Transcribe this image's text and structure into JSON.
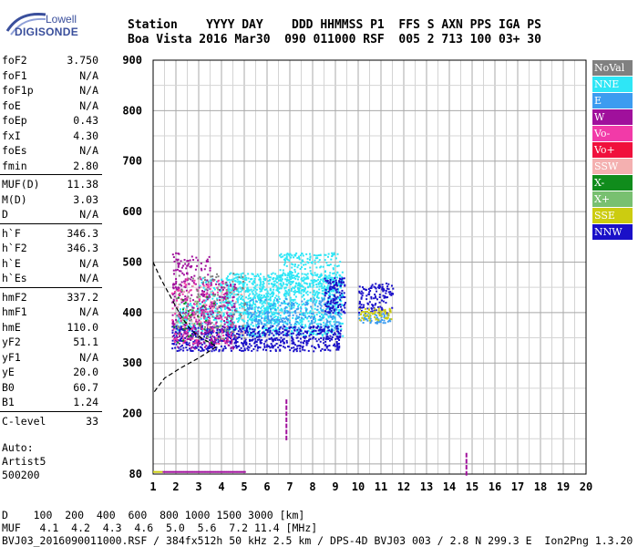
{
  "logo": {
    "brand": "Lowell",
    "product": "DIGISONDE"
  },
  "header": {
    "line1": "Station    YYYY DAY    DDD HHMMSS P1  FFS S AXN PPS IGA PS",
    "line2": "Boa Vista 2016 Mar30  090 011000 RSF  005 2 713 100 03+ 30"
  },
  "params": [
    {
      "name": "foF2",
      "value": "3.750"
    },
    {
      "name": "foF1",
      "value": "N/A"
    },
    {
      "name": "foF1p",
      "value": "N/A"
    },
    {
      "name": "foE",
      "value": "N/A"
    },
    {
      "name": "foEp",
      "value": "0.43"
    },
    {
      "name": "fxI",
      "value": "4.30"
    },
    {
      "name": "foEs",
      "value": "N/A"
    },
    {
      "name": "fmin",
      "value": "2.80"
    },
    {
      "sep": true
    },
    {
      "name": "MUF(D)",
      "value": "11.38"
    },
    {
      "name": "M(D)",
      "value": "3.03"
    },
    {
      "name": "D",
      "value": "N/A"
    },
    {
      "sep": true
    },
    {
      "name": "h`F",
      "value": "346.3"
    },
    {
      "name": "h`F2",
      "value": "346.3"
    },
    {
      "name": "h`E",
      "value": "N/A"
    },
    {
      "name": "h`Es",
      "value": "N/A"
    },
    {
      "sep": true
    },
    {
      "name": "hmF2",
      "value": "337.2"
    },
    {
      "name": "hmF1",
      "value": "N/A"
    },
    {
      "name": "hmE",
      "value": "110.0"
    },
    {
      "name": "yF2",
      "value": "51.1"
    },
    {
      "name": "yF1",
      "value": "N/A"
    },
    {
      "name": "yE",
      "value": "20.0"
    },
    {
      "name": "B0",
      "value": "60.7"
    },
    {
      "name": "B1",
      "value": "1.24"
    },
    {
      "sep": true
    },
    {
      "name": "C-level",
      "value": "33"
    }
  ],
  "auto": {
    "line1": "Auto:",
    "line2": "Artist5",
    "line3": "500200"
  },
  "legend": [
    {
      "label": "NoVal",
      "color": "#808080"
    },
    {
      "label": "NNE",
      "color": "#2ee6f6"
    },
    {
      "label": "E",
      "color": "#3c9cf0"
    },
    {
      "label": "W",
      "color": "#a0109c"
    },
    {
      "label": "Vo-",
      "color": "#f23aa8"
    },
    {
      "label": "Vo+",
      "color": "#f0103c"
    },
    {
      "label": "SSW",
      "color": "#f4b0b0"
    },
    {
      "label": "X-",
      "color": "#108c1c"
    },
    {
      "label": "X+",
      "color": "#78c070"
    },
    {
      "label": "SSE",
      "color": "#cccc10"
    },
    {
      "label": "NNW",
      "color": "#1a10c8"
    }
  ],
  "bottom": {
    "d_line": "D    100  200  400  600  800 1000 1500 3000 [km]",
    "muf_line": "MUF   4.1  4.2  4.3  4.6  5.0  5.6  7.2 11.4 [MHz]",
    "footer": "BVJ03_2016090011000.RSF / 384fx512h 50 kHz 2.5 km / DPS-4D BVJ03 003 / 2.8 N 299.3 E  Ion2Png 1.3.20"
  },
  "chart_data": {
    "type": "scatter",
    "xlim": [
      1,
      20
    ],
    "ylim": [
      80,
      900
    ],
    "x_ticks": [
      1,
      2,
      3,
      4,
      5,
      6,
      7,
      8,
      9,
      10,
      11,
      12,
      13,
      14,
      15,
      16,
      17,
      18,
      19,
      20
    ],
    "y_ticks": [
      80,
      200,
      300,
      400,
      500,
      600,
      700,
      800,
      900
    ],
    "grid": true,
    "clusters": [
      {
        "name": "NNE",
        "x": [
          4.2,
          9.3
        ],
        "y": [
          355,
          480
        ],
        "n": 900
      },
      {
        "name": "NNE",
        "x": [
          3.0,
          6.5
        ],
        "y": [
          380,
          470
        ],
        "n": 300
      },
      {
        "name": "NNE",
        "x": [
          6.5,
          9.3
        ],
        "y": [
          440,
          520
        ],
        "n": 250
      },
      {
        "name": "NNE",
        "x": [
          2.0,
          3.8
        ],
        "y": [
          360,
          420
        ],
        "n": 120
      },
      {
        "name": "E",
        "x": [
          5.0,
          9.2
        ],
        "y": [
          370,
          430
        ],
        "n": 250
      },
      {
        "name": "E",
        "x": [
          10.0,
          11.4
        ],
        "y": [
          380,
          400
        ],
        "n": 60
      },
      {
        "name": "NNW",
        "x": [
          1.8,
          9.2
        ],
        "y": [
          325,
          375
        ],
        "n": 700
      },
      {
        "name": "NNW",
        "x": [
          8.5,
          9.4
        ],
        "y": [
          400,
          470
        ],
        "n": 120
      },
      {
        "name": "NNW",
        "x": [
          10.0,
          11.5
        ],
        "y": [
          400,
          460
        ],
        "n": 120
      },
      {
        "name": "W",
        "x": [
          1.8,
          4.6
        ],
        "y": [
          330,
          470
        ],
        "n": 350
      },
      {
        "name": "W",
        "x": [
          1.8,
          3.5
        ],
        "y": [
          470,
          520
        ],
        "n": 60
      },
      {
        "name": "Vo-",
        "x": [
          1.8,
          4.5
        ],
        "y": [
          340,
          470
        ],
        "n": 150
      },
      {
        "name": "NoVal",
        "x": [
          2.0,
          5.0
        ],
        "y": [
          350,
          480
        ],
        "n": 100
      },
      {
        "name": "SSE",
        "x": [
          10.0,
          11.5
        ],
        "y": [
          385,
          410
        ],
        "n": 60
      },
      {
        "name": "X-",
        "x": [
          1.8,
          4.0
        ],
        "y": [
          340,
          440
        ],
        "n": 30
      },
      {
        "name": "SSW",
        "x": [
          2.0,
          5.0
        ],
        "y": [
          360,
          460
        ],
        "n": 40
      },
      {
        "name": "X+",
        "x": [
          2.0,
          4.5
        ],
        "y": [
          350,
          450
        ],
        "n": 30
      }
    ],
    "vertical_segments": [
      {
        "x": 6.85,
        "y": [
          150,
          230
        ]
      },
      {
        "x": 14.75,
        "y": [
          80,
          125
        ]
      }
    ],
    "bottom_row": {
      "x": [
        1.0,
        5.0
      ],
      "y": 86
    },
    "dashed_profile": [
      [
        1.0,
        500
      ],
      [
        1.3,
        470
      ],
      [
        1.6,
        445
      ],
      [
        1.9,
        420
      ],
      [
        2.2,
        395
      ],
      [
        2.5,
        375
      ],
      [
        2.8,
        360
      ],
      [
        3.1,
        350
      ],
      [
        3.5,
        340
      ],
      [
        3.8,
        333
      ],
      [
        3.8,
        333
      ],
      [
        3.0,
        310
      ],
      [
        2.2,
        290
      ],
      [
        1.5,
        270
      ],
      [
        1.0,
        240
      ]
    ]
  }
}
